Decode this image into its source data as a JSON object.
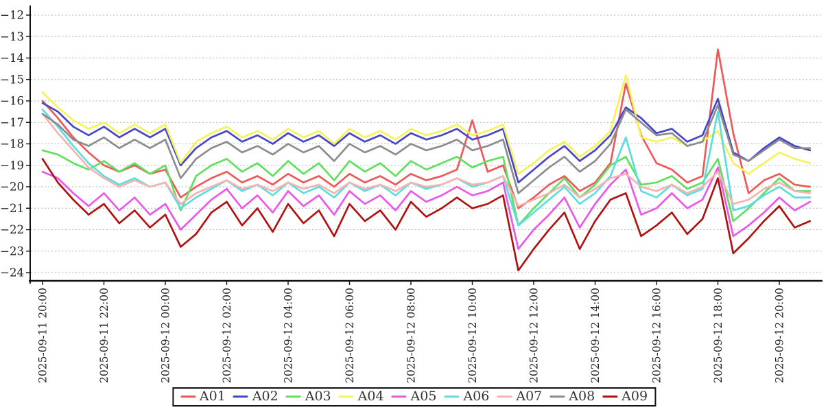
{
  "chart_data": {
    "type": "line",
    "title": "",
    "x_axis": {
      "start": "2025-09-11 20:00",
      "step_hours": 0.5,
      "tick_hours": [
        0,
        2,
        4,
        6,
        8,
        10,
        12,
        14,
        16,
        18,
        20,
        22,
        24
      ],
      "tick_labels": [
        "2025-09-11 20:00",
        "2025-09-11 22:00",
        "2025-09-12 00:00",
        "2025-09-12 02:00",
        "2025-09-12 04:00",
        "2025-09-12 06:00",
        "2025-09-12 08:00",
        "2025-09-12 10:00",
        "2025-09-12 12:00",
        "2025-09-12 14:00",
        "2025-09-12 16:00",
        "2025-09-12 18:00",
        "2025-09-12 20:00"
      ]
    },
    "y_axis": {
      "ticks": [
        -12,
        -13,
        -14,
        -15,
        -16,
        -17,
        -18,
        -19,
        -20,
        -21,
        -22,
        -23,
        -24
      ],
      "range": [
        -24.4,
        -11.6
      ]
    },
    "grid": {
      "horizontal": true,
      "style": "dashed",
      "color": "#b4b4b4"
    },
    "legend": {
      "position": "bottom-center",
      "border_color": "#111111"
    },
    "series": [
      {
        "name": "A01",
        "color": "#ef5858",
        "values": [
          -16.0,
          -16.8,
          -17.7,
          -18.4,
          -19.0,
          -19.3,
          -19.0,
          -19.4,
          -19.2,
          -20.5,
          -20.0,
          -19.6,
          -19.3,
          -19.8,
          -19.5,
          -19.9,
          -19.4,
          -19.8,
          -19.5,
          -20.0,
          -19.4,
          -19.8,
          -19.5,
          -19.9,
          -19.4,
          -19.7,
          -19.5,
          -19.2,
          -16.9,
          -19.3,
          -19.0,
          -21.0,
          -20.5,
          -19.9,
          -19.5,
          -20.2,
          -19.8,
          -18.9,
          -15.2,
          -17.6,
          -18.9,
          -19.2,
          -19.8,
          -19.5,
          -13.6,
          -17.5,
          -20.3,
          -19.7,
          -19.4,
          -19.9,
          -20.0
        ]
      },
      {
        "name": "A02",
        "color": "#4646cd",
        "values": [
          -16.1,
          -16.5,
          -17.2,
          -17.6,
          -17.2,
          -17.7,
          -17.3,
          -17.7,
          -17.3,
          -19.0,
          -18.2,
          -17.7,
          -17.4,
          -17.9,
          -17.6,
          -18.0,
          -17.5,
          -17.9,
          -17.6,
          -18.1,
          -17.5,
          -17.9,
          -17.6,
          -18.0,
          -17.5,
          -17.8,
          -17.6,
          -17.3,
          -17.8,
          -17.6,
          -17.3,
          -19.8,
          -19.2,
          -18.6,
          -18.1,
          -18.8,
          -18.3,
          -17.6,
          -16.3,
          -16.8,
          -17.5,
          -17.3,
          -17.9,
          -17.6,
          -15.9,
          -18.4,
          -18.8,
          -18.2,
          -17.7,
          -18.1,
          -18.3
        ]
      },
      {
        "name": "A03",
        "color": "#5fe05f",
        "values": [
          -18.3,
          -18.5,
          -18.9,
          -19.2,
          -18.8,
          -19.3,
          -18.9,
          -19.4,
          -19.0,
          -21.1,
          -19.5,
          -19.0,
          -18.7,
          -19.3,
          -18.9,
          -19.5,
          -18.8,
          -19.4,
          -18.9,
          -19.7,
          -18.8,
          -19.3,
          -18.9,
          -19.5,
          -18.8,
          -19.2,
          -18.9,
          -18.6,
          -19.1,
          -18.8,
          -18.6,
          -21.8,
          -21.0,
          -20.3,
          -19.6,
          -20.5,
          -19.9,
          -19.0,
          -18.6,
          -19.9,
          -19.8,
          -19.5,
          -20.1,
          -19.8,
          -18.7,
          -21.6,
          -21.0,
          -20.3,
          -19.6,
          -20.2,
          -20.2
        ]
      },
      {
        "name": "A04",
        "color": "#f6f259",
        "values": [
          -15.6,
          -16.3,
          -16.9,
          -17.3,
          -17.0,
          -17.5,
          -17.1,
          -17.5,
          -17.1,
          -18.9,
          -17.9,
          -17.5,
          -17.2,
          -17.7,
          -17.4,
          -17.8,
          -17.3,
          -17.7,
          -17.4,
          -18.0,
          -17.3,
          -17.7,
          -17.4,
          -17.8,
          -17.3,
          -17.6,
          -17.4,
          -17.1,
          -17.6,
          -17.4,
          -17.1,
          -19.4,
          -18.9,
          -18.3,
          -17.9,
          -18.6,
          -18.1,
          -17.4,
          -14.8,
          -17.7,
          -17.9,
          -17.7,
          -18.1,
          -17.9,
          -17.4,
          -18.9,
          -19.4,
          -18.9,
          -18.4,
          -18.7,
          -18.9
        ]
      },
      {
        "name": "A05",
        "color": "#ea58ea",
        "values": [
          -19.3,
          -19.6,
          -20.3,
          -20.9,
          -20.3,
          -21.1,
          -20.5,
          -21.3,
          -20.8,
          -22.0,
          -21.3,
          -20.6,
          -20.1,
          -21.0,
          -20.4,
          -21.2,
          -20.2,
          -20.9,
          -20.4,
          -21.3,
          -20.2,
          -20.8,
          -20.4,
          -21.1,
          -20.2,
          -20.7,
          -20.4,
          -20.0,
          -20.4,
          -20.2,
          -19.8,
          -22.9,
          -22.0,
          -21.3,
          -20.5,
          -21.9,
          -20.8,
          -19.9,
          -19.2,
          -21.3,
          -21.0,
          -20.3,
          -21.0,
          -20.6,
          -19.1,
          -22.3,
          -21.8,
          -21.2,
          -20.5,
          -21.1,
          -20.7
        ]
      },
      {
        "name": "A06",
        "color": "#5cdede",
        "values": [
          -16.4,
          -17.2,
          -18.1,
          -18.9,
          -19.5,
          -19.9,
          -19.6,
          -20.0,
          -19.8,
          -21.0,
          -20.5,
          -20.1,
          -19.7,
          -20.2,
          -19.9,
          -20.4,
          -19.8,
          -20.3,
          -20.0,
          -20.5,
          -19.8,
          -20.2,
          -19.9,
          -20.4,
          -19.8,
          -20.1,
          -19.9,
          -19.6,
          -20.0,
          -19.8,
          -19.5,
          -21.8,
          -21.2,
          -20.6,
          -20.0,
          -20.8,
          -20.3,
          -19.5,
          -17.7,
          -20.2,
          -20.5,
          -19.9,
          -20.4,
          -20.1,
          -16.5,
          -21.1,
          -20.9,
          -20.4,
          -20.0,
          -20.5,
          -20.5
        ]
      },
      {
        "name": "A07",
        "color": "#f4b2b2",
        "values": [
          -16.6,
          -17.5,
          -18.3,
          -19.1,
          -19.6,
          -20.0,
          -19.7,
          -20.0,
          -19.8,
          -20.8,
          -20.3,
          -20.0,
          -19.7,
          -20.1,
          -19.9,
          -20.2,
          -19.8,
          -20.1,
          -19.9,
          -20.3,
          -19.8,
          -20.1,
          -19.9,
          -20.2,
          -19.8,
          -20.0,
          -19.9,
          -19.6,
          -19.9,
          -19.8,
          -19.5,
          -20.9,
          -20.6,
          -20.3,
          -19.9,
          -20.5,
          -20.1,
          -19.6,
          -19.4,
          -20.0,
          -20.2,
          -19.9,
          -20.3,
          -20.0,
          -19.3,
          -20.8,
          -20.6,
          -20.1,
          -19.8,
          -20.2,
          -20.3
        ]
      },
      {
        "name": "A08",
        "color": "#8c8c8c",
        "values": [
          -16.6,
          -17.1,
          -17.8,
          -18.1,
          -17.7,
          -18.2,
          -17.8,
          -18.2,
          -17.8,
          -19.6,
          -18.7,
          -18.2,
          -17.9,
          -18.4,
          -18.1,
          -18.5,
          -18.0,
          -18.4,
          -18.1,
          -18.8,
          -18.0,
          -18.4,
          -18.1,
          -18.5,
          -18.0,
          -18.3,
          -18.1,
          -17.8,
          -18.3,
          -18.1,
          -17.8,
          -20.3,
          -19.7,
          -19.1,
          -18.6,
          -19.3,
          -18.8,
          -18.0,
          -16.4,
          -17.0,
          -17.6,
          -17.5,
          -18.1,
          -17.9,
          -16.2,
          -18.5,
          -18.8,
          -18.3,
          -17.8,
          -18.2,
          -18.2
        ]
      },
      {
        "name": "A09",
        "color": "#b01212",
        "values": [
          -18.7,
          -19.8,
          -20.6,
          -21.3,
          -20.8,
          -21.7,
          -21.1,
          -21.9,
          -21.3,
          -22.8,
          -22.2,
          -21.2,
          -20.7,
          -21.8,
          -21.0,
          -22.1,
          -20.8,
          -21.7,
          -21.1,
          -22.3,
          -20.8,
          -21.6,
          -21.1,
          -22.0,
          -20.7,
          -21.4,
          -21.0,
          -20.5,
          -21.0,
          -20.8,
          -20.4,
          -23.9,
          -22.9,
          -22.0,
          -21.2,
          -22.9,
          -21.6,
          -20.6,
          -20.3,
          -22.3,
          -21.8,
          -21.2,
          -22.2,
          -21.5,
          -19.6,
          -23.1,
          -22.4,
          -21.6,
          -20.9,
          -21.9,
          -21.6
        ]
      }
    ]
  }
}
